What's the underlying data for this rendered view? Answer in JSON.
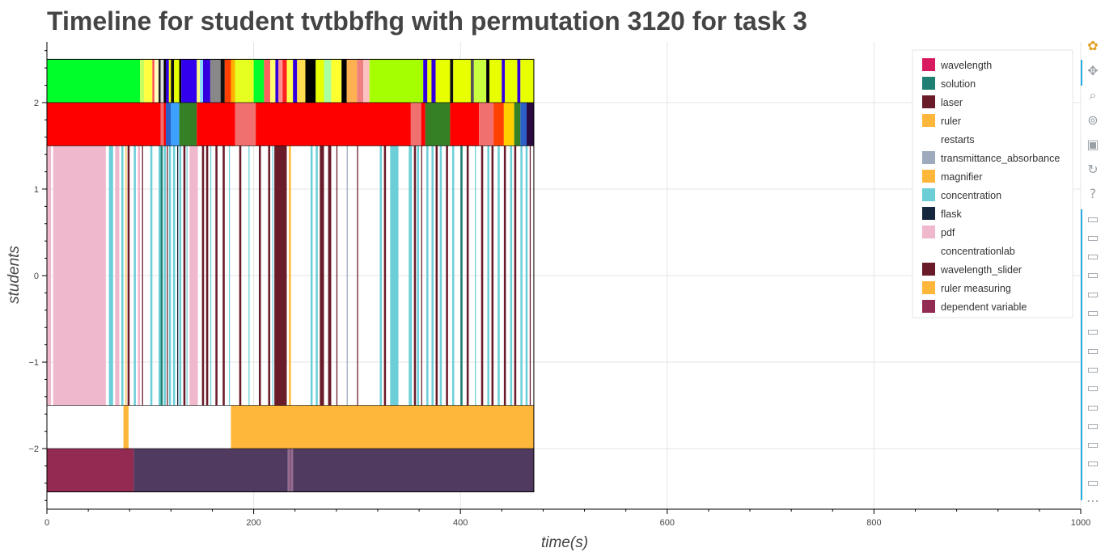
{
  "chart_data": {
    "type": "timeline",
    "title": "Timeline for student tvtbbfhg with permutation 3120 for task 3",
    "xlabel": "time(s)",
    "ylabel": "students",
    "xlim": [
      0,
      1000
    ],
    "ylim": [
      -2.7,
      2.7
    ],
    "x_ticks": [
      0,
      200,
      400,
      600,
      800,
      1000
    ],
    "y_ticks": [
      2,
      1,
      0,
      -1,
      -2
    ],
    "y_tick_labels": [
      "2",
      "1",
      "0",
      "−1",
      "−2"
    ],
    "grid": true,
    "legend_position": "top-right",
    "legend": [
      {
        "label": "wavelength",
        "color": "#d81b60"
      },
      {
        "label": "solution",
        "color": "#1f7f72"
      },
      {
        "label": "laser",
        "color": "#6a1b2a"
      },
      {
        "label": "ruler",
        "color": "#ffb73b"
      },
      {
        "label": "restarts",
        "color": ""
      },
      {
        "label": "transmittance_absorbance",
        "color": "#9eabbd"
      },
      {
        "label": "magnifier",
        "color": "#ffb73b"
      },
      {
        "label": "concentration",
        "color": "#6ccfd8"
      },
      {
        "label": "flask",
        "color": "#16263c"
      },
      {
        "label": "pdf",
        "color": "#f0b8cc"
      },
      {
        "label": "concentrationlab",
        "color": ""
      },
      {
        "label": "wavelength_slider",
        "color": "#6a1b2a"
      },
      {
        "label": "ruler measuring",
        "color": "#ffb73b"
      },
      {
        "label": "dependent variable",
        "color": "#922a52"
      }
    ],
    "rows": [
      {
        "y_range": [
          2,
          2.5
        ],
        "segments": [
          {
            "x0": 0,
            "x1": 90,
            "color": "#00ff2a"
          },
          {
            "x0": 90,
            "x1": 94,
            "color": "#c8ff60"
          },
          {
            "x0": 94,
            "x1": 102,
            "color": "#ffff40"
          },
          {
            "x0": 102,
            "x1": 104,
            "color": "#ff5050"
          },
          {
            "x0": 104,
            "x1": 108,
            "color": "#ffffc0"
          },
          {
            "x0": 108,
            "x1": 110,
            "color": "#222222"
          },
          {
            "x0": 110,
            "x1": 113,
            "color": "#dddddd"
          },
          {
            "x0": 113,
            "x1": 115,
            "color": "#000000"
          },
          {
            "x0": 115,
            "x1": 118,
            "color": "#3300dd"
          },
          {
            "x0": 118,
            "x1": 120,
            "color": "#ffff00"
          },
          {
            "x0": 120,
            "x1": 123,
            "color": "#111111"
          },
          {
            "x0": 123,
            "x1": 128,
            "color": "#e8ff00"
          },
          {
            "x0": 128,
            "x1": 130,
            "color": "#000000"
          },
          {
            "x0": 130,
            "x1": 145,
            "color": "#3300ee"
          },
          {
            "x0": 145,
            "x1": 148,
            "color": "#ffff80"
          },
          {
            "x0": 148,
            "x1": 151,
            "color": "#88ddff"
          },
          {
            "x0": 151,
            "x1": 158,
            "color": "#3300dd"
          },
          {
            "x0": 158,
            "x1": 168,
            "color": "#888888"
          },
          {
            "x0": 168,
            "x1": 172,
            "color": "#111111"
          },
          {
            "x0": 172,
            "x1": 178,
            "color": "#ff4000"
          },
          {
            "x0": 178,
            "x1": 182,
            "color": "#ffb000"
          },
          {
            "x0": 182,
            "x1": 200,
            "color": "#e6ff20"
          },
          {
            "x0": 200,
            "x1": 210,
            "color": "#00ff2a"
          },
          {
            "x0": 210,
            "x1": 216,
            "color": "#ff6060"
          },
          {
            "x0": 216,
            "x1": 221,
            "color": "#ffff70"
          },
          {
            "x0": 221,
            "x1": 224,
            "color": "#3300dd"
          },
          {
            "x0": 224,
            "x1": 228,
            "color": "#ff9090"
          },
          {
            "x0": 228,
            "x1": 232,
            "color": "#ff2020"
          },
          {
            "x0": 232,
            "x1": 238,
            "color": "#ffff50"
          },
          {
            "x0": 238,
            "x1": 242,
            "color": "#3300dd"
          },
          {
            "x0": 242,
            "x1": 250,
            "color": "#ffdd50"
          },
          {
            "x0": 250,
            "x1": 260,
            "color": "#000000"
          },
          {
            "x0": 260,
            "x1": 268,
            "color": "#e8ff00"
          },
          {
            "x0": 268,
            "x1": 275,
            "color": "#aaffa0"
          },
          {
            "x0": 275,
            "x1": 285,
            "color": "#ffff30"
          },
          {
            "x0": 285,
            "x1": 290,
            "color": "#000000"
          },
          {
            "x0": 290,
            "x1": 300,
            "color": "#ffb050"
          },
          {
            "x0": 300,
            "x1": 306,
            "color": "#f08080"
          },
          {
            "x0": 306,
            "x1": 312,
            "color": "#ffc0c0"
          },
          {
            "x0": 312,
            "x1": 364,
            "color": "#a6ff00"
          },
          {
            "x0": 364,
            "x1": 368,
            "color": "#3300dd"
          },
          {
            "x0": 368,
            "x1": 372,
            "color": "#e8ff00"
          },
          {
            "x0": 372,
            "x1": 376,
            "color": "#3300dd"
          },
          {
            "x0": 376,
            "x1": 390,
            "color": "#e8ff00"
          },
          {
            "x0": 390,
            "x1": 393,
            "color": "#111111"
          },
          {
            "x0": 393,
            "x1": 410,
            "color": "#e8ff00"
          },
          {
            "x0": 410,
            "x1": 413,
            "color": "#555555"
          },
          {
            "x0": 413,
            "x1": 425,
            "color": "#c8ff40"
          },
          {
            "x0": 425,
            "x1": 428,
            "color": "#000000"
          },
          {
            "x0": 428,
            "x1": 440,
            "color": "#e8ff00"
          },
          {
            "x0": 440,
            "x1": 443,
            "color": "#3300dd"
          },
          {
            "x0": 443,
            "x1": 455,
            "color": "#e8ff00"
          },
          {
            "x0": 455,
            "x1": 458,
            "color": "#3300dd"
          },
          {
            "x0": 458,
            "x1": 471,
            "color": "#e8ff00"
          }
        ]
      },
      {
        "y_range": [
          1.5,
          2
        ],
        "segments": [
          {
            "x0": 0,
            "x1": 110,
            "color": "#ff0000"
          },
          {
            "x0": 110,
            "x1": 113,
            "color": "#f07070"
          },
          {
            "x0": 113,
            "x1": 115,
            "color": "#ff0000"
          },
          {
            "x0": 115,
            "x1": 120,
            "color": "#2a60c8"
          },
          {
            "x0": 120,
            "x1": 128,
            "color": "#3ca0ff"
          },
          {
            "x0": 128,
            "x1": 145,
            "color": "#358025"
          },
          {
            "x0": 145,
            "x1": 182,
            "color": "#ff0000"
          },
          {
            "x0": 182,
            "x1": 202,
            "color": "#f07070"
          },
          {
            "x0": 202,
            "x1": 352,
            "color": "#ff0000"
          },
          {
            "x0": 352,
            "x1": 362,
            "color": "#f07070"
          },
          {
            "x0": 362,
            "x1": 366,
            "color": "#ff0000"
          },
          {
            "x0": 366,
            "x1": 390,
            "color": "#358025"
          },
          {
            "x0": 390,
            "x1": 418,
            "color": "#ff0000"
          },
          {
            "x0": 418,
            "x1": 432,
            "color": "#f07070"
          },
          {
            "x0": 432,
            "x1": 442,
            "color": "#ff4000"
          },
          {
            "x0": 442,
            "x1": 452,
            "color": "#ffd000"
          },
          {
            "x0": 452,
            "x1": 458,
            "color": "#358025"
          },
          {
            "x0": 458,
            "x1": 464,
            "color": "#2a60c8"
          },
          {
            "x0": 464,
            "x1": 471,
            "color": "#2a0a40"
          }
        ]
      },
      {
        "y_range": [
          -1.5,
          1.5
        ],
        "segments": [
          {
            "x0": 0,
            "x1": 4,
            "color": "#f0b8cc"
          },
          {
            "x0": 6,
            "x1": 57,
            "color": "#f0b8cc"
          },
          {
            "x0": 60,
            "x1": 64,
            "color": "#6ccfd8"
          },
          {
            "x0": 66,
            "x1": 70,
            "color": "#f0b8cc"
          },
          {
            "x0": 72,
            "x1": 74,
            "color": "#6ccfd8"
          },
          {
            "x0": 76,
            "x1": 77,
            "color": "#ffb73b"
          },
          {
            "x0": 78,
            "x1": 80,
            "color": "#6a1b2a"
          },
          {
            "x0": 84,
            "x1": 86,
            "color": "#6ccfd8"
          },
          {
            "x0": 88,
            "x1": 90,
            "color": "#f0b8cc"
          },
          {
            "x0": 92,
            "x1": 93,
            "color": "#6a1b2a"
          },
          {
            "x0": 100,
            "x1": 102,
            "color": "#6ccfd8"
          },
          {
            "x0": 108,
            "x1": 110,
            "color": "#6ccfd8"
          },
          {
            "x0": 110,
            "x1": 112,
            "color": "#1f7f72"
          },
          {
            "x0": 113,
            "x1": 115,
            "color": "#6ccfd8"
          },
          {
            "x0": 116,
            "x1": 117,
            "color": "#6a1b2a"
          },
          {
            "x0": 118,
            "x1": 120,
            "color": "#6ccfd8"
          },
          {
            "x0": 122,
            "x1": 124,
            "color": "#6ccfd8"
          },
          {
            "x0": 126,
            "x1": 127,
            "color": "#16263c"
          },
          {
            "x0": 128,
            "x1": 130,
            "color": "#6ccfd8"
          },
          {
            "x0": 132,
            "x1": 134,
            "color": "#6a1b2a"
          },
          {
            "x0": 135,
            "x1": 136,
            "color": "#6ccfd8"
          },
          {
            "x0": 138,
            "x1": 146,
            "color": "#f0b8cc"
          },
          {
            "x0": 150,
            "x1": 152,
            "color": "#6a1b2a"
          },
          {
            "x0": 154,
            "x1": 156,
            "color": "#6a1b2a"
          },
          {
            "x0": 158,
            "x1": 159,
            "color": "#6ccfd8"
          },
          {
            "x0": 163,
            "x1": 165,
            "color": "#6a1b2a"
          },
          {
            "x0": 170,
            "x1": 172,
            "color": "#6a1b2a"
          },
          {
            "x0": 176,
            "x1": 177,
            "color": "#6ccfd8"
          },
          {
            "x0": 186,
            "x1": 188,
            "color": "#6a1b2a"
          },
          {
            "x0": 195,
            "x1": 196,
            "color": "#6ccfd8"
          },
          {
            "x0": 205,
            "x1": 207,
            "color": "#6a1b2a"
          },
          {
            "x0": 214,
            "x1": 216,
            "color": "#6a1b2a"
          },
          {
            "x0": 218,
            "x1": 219,
            "color": "#6ccfd8"
          },
          {
            "x0": 220,
            "x1": 232,
            "color": "#6a1b2a"
          },
          {
            "x0": 234,
            "x1": 236,
            "color": "#ffb73b"
          },
          {
            "x0": 255,
            "x1": 257,
            "color": "#6ccfd8"
          },
          {
            "x0": 260,
            "x1": 262,
            "color": "#6ccfd8"
          },
          {
            "x0": 264,
            "x1": 268,
            "color": "#6a1b2a"
          },
          {
            "x0": 272,
            "x1": 275,
            "color": "#6a1b2a"
          },
          {
            "x0": 280,
            "x1": 281,
            "color": "#6a1b2a"
          },
          {
            "x0": 290,
            "x1": 291,
            "color": "#9eabbd"
          },
          {
            "x0": 300,
            "x1": 301,
            "color": "#6a1b2a"
          },
          {
            "x0": 322,
            "x1": 324,
            "color": "#6ccfd8"
          },
          {
            "x0": 326,
            "x1": 328,
            "color": "#6a1b2a"
          },
          {
            "x0": 332,
            "x1": 340,
            "color": "#6ccfd8"
          },
          {
            "x0": 350,
            "x1": 353,
            "color": "#6ccfd8"
          },
          {
            "x0": 355,
            "x1": 357,
            "color": "#6a1b2a"
          },
          {
            "x0": 358,
            "x1": 360,
            "color": "#6ccfd8"
          },
          {
            "x0": 362,
            "x1": 363,
            "color": "#6a1b2a"
          },
          {
            "x0": 367,
            "x1": 369,
            "color": "#6ccfd8"
          },
          {
            "x0": 372,
            "x1": 374,
            "color": "#6ccfd8"
          },
          {
            "x0": 376,
            "x1": 378,
            "color": "#6a1b2a"
          },
          {
            "x0": 380,
            "x1": 382,
            "color": "#6ccfd8"
          },
          {
            "x0": 386,
            "x1": 388,
            "color": "#6a1b2a"
          },
          {
            "x0": 392,
            "x1": 394,
            "color": "#6ccfd8"
          },
          {
            "x0": 400,
            "x1": 402,
            "color": "#1f7f72"
          },
          {
            "x0": 406,
            "x1": 408,
            "color": "#6a1b2a"
          },
          {
            "x0": 414,
            "x1": 415,
            "color": "#6ccfd8"
          },
          {
            "x0": 420,
            "x1": 422,
            "color": "#6a1b2a"
          },
          {
            "x0": 426,
            "x1": 428,
            "color": "#6ccfd8"
          },
          {
            "x0": 430,
            "x1": 432,
            "color": "#6a1b2a"
          },
          {
            "x0": 436,
            "x1": 438,
            "color": "#6ccfd8"
          },
          {
            "x0": 442,
            "x1": 444,
            "color": "#6a1b2a"
          },
          {
            "x0": 448,
            "x1": 450,
            "color": "#6ccfd8"
          },
          {
            "x0": 452,
            "x1": 454,
            "color": "#6a1b2a"
          },
          {
            "x0": 458,
            "x1": 460,
            "color": "#6ccfd8"
          },
          {
            "x0": 463,
            "x1": 465,
            "color": "#6ccfd8"
          },
          {
            "x0": 467,
            "x1": 468,
            "color": "#6a1b2a"
          }
        ]
      },
      {
        "y_range": [
          -2,
          -1.5
        ],
        "segments": [
          {
            "x0": 74,
            "x1": 79,
            "color": "#ffb73b"
          },
          {
            "x0": 178,
            "x1": 471,
            "color": "#ffb73b"
          }
        ]
      },
      {
        "y_range": [
          -2.5,
          -2
        ],
        "segments": [
          {
            "x0": 0,
            "x1": 84,
            "color": "#922a52"
          },
          {
            "x0": 84,
            "x1": 233,
            "color": "#503a60"
          },
          {
            "x0": 233,
            "x1": 235,
            "color": "#9a6a90"
          },
          {
            "x0": 235,
            "x1": 236,
            "color": "#503a60"
          },
          {
            "x0": 236,
            "x1": 238,
            "color": "#9a6a90"
          },
          {
            "x0": 238,
            "x1": 471,
            "color": "#503a60"
          }
        ]
      }
    ]
  },
  "toolbar": {
    "items": [
      {
        "name": "bokeh-logo-icon",
        "glyph": "✿"
      },
      {
        "name": "pan-icon",
        "glyph": "✥"
      },
      {
        "name": "box-zoom-icon",
        "glyph": "⌕"
      },
      {
        "name": "wheel-zoom-icon",
        "glyph": "⊚"
      },
      {
        "name": "save-icon",
        "glyph": "▣"
      },
      {
        "name": "reset-icon",
        "glyph": "↻"
      },
      {
        "name": "help-icon",
        "glyph": "?"
      },
      {
        "name": "hover-icon",
        "glyph": "▭",
        "repeat": 15
      },
      {
        "name": "more-icon",
        "glyph": "⋯"
      }
    ]
  }
}
